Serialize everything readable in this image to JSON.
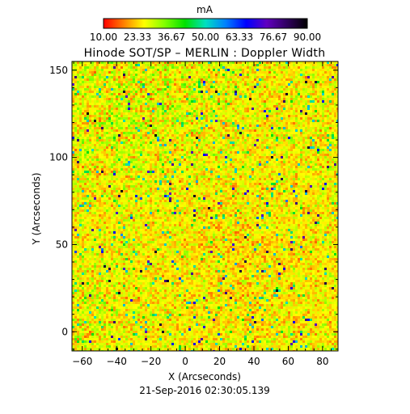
{
  "chart_data": {
    "type": "heatmap",
    "title": "Hinode SOT/SP – MERLIN : Doppler Width",
    "xlabel": "X (Arcseconds)",
    "ylabel": "Y (Arcseconds)",
    "footer": "21-Sep-2016 02:30:05.139",
    "x_range": [
      -66,
      89
    ],
    "y_range": [
      -11,
      155
    ],
    "x_ticks": [
      -60,
      -40,
      -20,
      0,
      20,
      40,
      60,
      80
    ],
    "x_tick_labels": [
      "−60",
      "−40",
      "−20",
      "0",
      "20",
      "40",
      "60",
      "80"
    ],
    "y_ticks": [
      0,
      50,
      100,
      150
    ],
    "y_tick_labels": [
      "0",
      "50",
      "100",
      "150"
    ],
    "colorbar": {
      "unit": "mA",
      "min": 10.0,
      "max": 90.0,
      "tick_labels": [
        "10.00",
        "23.33",
        "36.67",
        "50.00",
        "63.33",
        "76.67",
        "90.00"
      ],
      "colormap_stops": [
        "#ff0000",
        "#ff8000",
        "#ffff00",
        "#80ff00",
        "#00e000",
        "#00e0c0",
        "#0080ff",
        "#0000ff",
        "#6000c0",
        "#300060",
        "#000000"
      ]
    },
    "field_description_values": {
      "dominant_range_mA": [
        15,
        40
      ],
      "grid": false
    }
  }
}
